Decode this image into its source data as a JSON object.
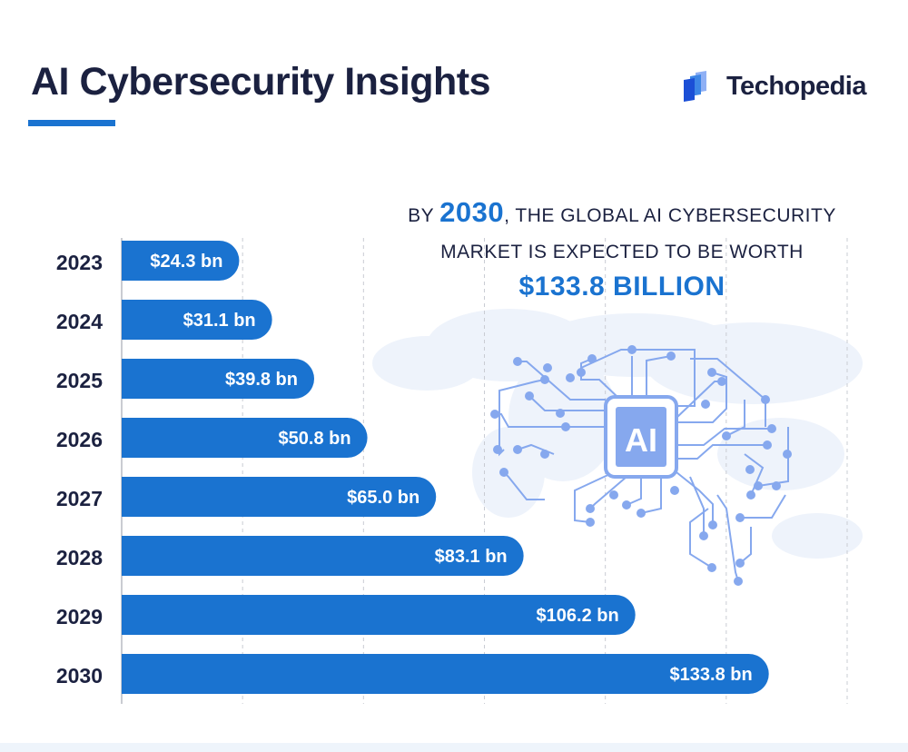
{
  "header": {
    "title": "AI Cybersecurity Insights",
    "brand": "Techopedia"
  },
  "headline": {
    "prefix": "BY ",
    "year": "2030",
    "line1_rest": ", THE GLOBAL AI CYBERSECURITY",
    "line2": "MARKET IS EXPECTED TO BE WORTH",
    "value": "$133.8 BILLION"
  },
  "colors": {
    "bar": "#1a73d0",
    "title": "#1b2140",
    "accent": "#1a73d0",
    "illustration": "#86a8ee"
  },
  "illustration": {
    "icon": "ai-circuit-brain-icon",
    "chip_label": "AI"
  },
  "chart_data": {
    "type": "bar",
    "orientation": "horizontal",
    "categories": [
      "2023",
      "2024",
      "2025",
      "2026",
      "2027",
      "2028",
      "2029",
      "2030"
    ],
    "values": [
      24.3,
      31.1,
      39.8,
      50.8,
      65.0,
      83.1,
      106.2,
      133.8
    ],
    "data_labels": [
      "$24.3 bn",
      "$31.1 bn",
      "$39.8 bn",
      "$50.8 bn",
      "$65.0 bn",
      "$83.1 bn",
      "$106.2 bn",
      "$133.8 bn"
    ],
    "unit": "bn USD",
    "xlim": [
      0,
      150
    ],
    "grid": true,
    "gridlines": [
      25,
      50,
      75,
      100,
      125,
      150
    ],
    "xlabel": "",
    "ylabel": "",
    "title": ""
  }
}
